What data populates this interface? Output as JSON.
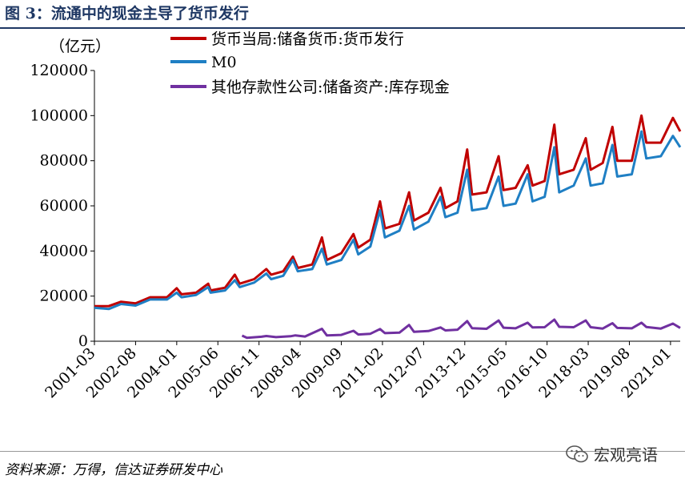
{
  "header": {
    "title": "图 3：流通中的现金主导了货币发行"
  },
  "footer": {
    "source": "资料来源：万得，信达证券研发中心",
    "watermark": "宏观亮语",
    "watermark_icon": "wechat-icon"
  },
  "chart_data": {
    "type": "line",
    "unit_label": "（亿元）",
    "ylim": [
      0,
      120000
    ],
    "yticks": [
      0,
      20000,
      40000,
      60000,
      80000,
      100000,
      120000
    ],
    "ytick_labels": [
      "0",
      "20000",
      "40000",
      "60000",
      "80000",
      "100000",
      "120000"
    ],
    "xlim": [
      "2001-03",
      "2021-05"
    ],
    "xtick_labels": [
      "2001-03",
      "2002-08",
      "2004-01",
      "2005-06",
      "2006-11",
      "2008-04",
      "2009-09",
      "2011-02",
      "2012-07",
      "2013-12",
      "2015-05",
      "2016-10",
      "2018-03",
      "2019-08",
      "2021-01"
    ],
    "legend_position": "top",
    "series": [
      {
        "name": "货币当局:储备货币:货币发行",
        "color": "#c00000",
        "start": "2001-03",
        "end": "2021-05",
        "points": [
          [
            "2001-03",
            15500
          ],
          [
            "2001-09",
            15600
          ],
          [
            "2002-02",
            17500
          ],
          [
            "2002-08",
            16800
          ],
          [
            "2003-02",
            19500
          ],
          [
            "2003-09",
            19500
          ],
          [
            "2004-01",
            23500
          ],
          [
            "2004-03",
            20800
          ],
          [
            "2004-09",
            21500
          ],
          [
            "2005-02",
            25500
          ],
          [
            "2005-03",
            22500
          ],
          [
            "2005-09",
            23700
          ],
          [
            "2006-01",
            29500
          ],
          [
            "2006-03",
            25500
          ],
          [
            "2006-09",
            27500
          ],
          [
            "2007-02",
            32000
          ],
          [
            "2007-04",
            29500
          ],
          [
            "2007-09",
            31000
          ],
          [
            "2008-01",
            37500
          ],
          [
            "2008-03",
            32500
          ],
          [
            "2008-09",
            34000
          ],
          [
            "2009-01",
            46000
          ],
          [
            "2009-03",
            36000
          ],
          [
            "2009-09",
            39000
          ],
          [
            "2010-02",
            47500
          ],
          [
            "2010-04",
            41500
          ],
          [
            "2010-09",
            45000
          ],
          [
            "2011-01",
            62000
          ],
          [
            "2011-03",
            50000
          ],
          [
            "2011-09",
            52000
          ],
          [
            "2012-01",
            66000
          ],
          [
            "2012-03",
            53500
          ],
          [
            "2012-09",
            57000
          ],
          [
            "2013-02",
            68000
          ],
          [
            "2013-04",
            59000
          ],
          [
            "2013-09",
            62000
          ],
          [
            "2014-01",
            85000
          ],
          [
            "2014-03",
            65000
          ],
          [
            "2014-09",
            66000
          ],
          [
            "2015-02",
            82000
          ],
          [
            "2015-04",
            67000
          ],
          [
            "2015-09",
            68000
          ],
          [
            "2016-02",
            78000
          ],
          [
            "2016-04",
            69000
          ],
          [
            "2016-09",
            71000
          ],
          [
            "2017-01",
            96000
          ],
          [
            "2017-03",
            74000
          ],
          [
            "2017-09",
            76000
          ],
          [
            "2018-02",
            90000
          ],
          [
            "2018-04",
            76000
          ],
          [
            "2018-09",
            79000
          ],
          [
            "2019-01",
            95000
          ],
          [
            "2019-03",
            80000
          ],
          [
            "2019-09",
            80000
          ],
          [
            "2020-01",
            100000
          ],
          [
            "2020-03",
            88000
          ],
          [
            "2020-09",
            88000
          ],
          [
            "2021-02",
            99000
          ],
          [
            "2021-05",
            93000
          ]
        ]
      },
      {
        "name": "M0",
        "color": "#1f7fc4",
        "start": "2001-03",
        "end": "2021-05",
        "points": [
          [
            "2001-03",
            14800
          ],
          [
            "2001-09",
            14300
          ],
          [
            "2002-02",
            16500
          ],
          [
            "2002-08",
            15800
          ],
          [
            "2003-02",
            18500
          ],
          [
            "2003-09",
            18500
          ],
          [
            "2004-01",
            21500
          ],
          [
            "2004-03",
            19500
          ],
          [
            "2004-09",
            20500
          ],
          [
            "2005-02",
            24000
          ],
          [
            "2005-03",
            21500
          ],
          [
            "2005-09",
            22500
          ],
          [
            "2006-01",
            27000
          ],
          [
            "2006-03",
            24000
          ],
          [
            "2006-09",
            26000
          ],
          [
            "2007-02",
            30000
          ],
          [
            "2007-04",
            27500
          ],
          [
            "2007-09",
            29000
          ],
          [
            "2008-01",
            36000
          ],
          [
            "2008-03",
            31000
          ],
          [
            "2008-09",
            32000
          ],
          [
            "2009-01",
            41000
          ],
          [
            "2009-03",
            34000
          ],
          [
            "2009-09",
            36000
          ],
          [
            "2010-02",
            45000
          ],
          [
            "2010-04",
            38500
          ],
          [
            "2010-09",
            42000
          ],
          [
            "2011-01",
            58000
          ],
          [
            "2011-03",
            46000
          ],
          [
            "2011-09",
            49000
          ],
          [
            "2012-01",
            60000
          ],
          [
            "2012-03",
            49500
          ],
          [
            "2012-09",
            53000
          ],
          [
            "2013-02",
            64000
          ],
          [
            "2013-04",
            55000
          ],
          [
            "2013-09",
            57000
          ],
          [
            "2014-01",
            76000
          ],
          [
            "2014-03",
            58000
          ],
          [
            "2014-09",
            59000
          ],
          [
            "2015-02",
            73000
          ],
          [
            "2015-04",
            60000
          ],
          [
            "2015-09",
            61000
          ],
          [
            "2016-02",
            74000
          ],
          [
            "2016-04",
            62000
          ],
          [
            "2016-09",
            64000
          ],
          [
            "2017-01",
            86000
          ],
          [
            "2017-03",
            66000
          ],
          [
            "2017-09",
            69000
          ],
          [
            "2018-02",
            81000
          ],
          [
            "2018-04",
            69000
          ],
          [
            "2018-09",
            70000
          ],
          [
            "2019-01",
            87000
          ],
          [
            "2019-03",
            73000
          ],
          [
            "2019-09",
            74000
          ],
          [
            "2020-01",
            93000
          ],
          [
            "2020-03",
            81000
          ],
          [
            "2020-09",
            82000
          ],
          [
            "2021-02",
            91000
          ],
          [
            "2021-05",
            86000
          ]
        ]
      },
      {
        "name": "其他存款性公司:储备资产:库存现金",
        "color": "#7030a0",
        "start": "2006-04",
        "end": "2021-05",
        "points": [
          [
            "2006-04",
            2500
          ],
          [
            "2006-06",
            1500
          ],
          [
            "2006-12",
            2000
          ],
          [
            "2007-02",
            2300
          ],
          [
            "2007-06",
            1800
          ],
          [
            "2007-12",
            2200
          ],
          [
            "2008-02",
            2600
          ],
          [
            "2008-06",
            2100
          ],
          [
            "2009-01",
            5500
          ],
          [
            "2009-03",
            2600
          ],
          [
            "2009-09",
            2800
          ],
          [
            "2010-02",
            4600
          ],
          [
            "2010-04",
            3000
          ],
          [
            "2010-09",
            3300
          ],
          [
            "2011-01",
            5400
          ],
          [
            "2011-03",
            3600
          ],
          [
            "2011-09",
            3800
          ],
          [
            "2012-01",
            7200
          ],
          [
            "2012-03",
            4200
          ],
          [
            "2012-09",
            4500
          ],
          [
            "2013-02",
            6100
          ],
          [
            "2013-04",
            4800
          ],
          [
            "2013-09",
            5100
          ],
          [
            "2014-01",
            8900
          ],
          [
            "2014-03",
            5800
          ],
          [
            "2014-09",
            5500
          ],
          [
            "2015-02",
            9200
          ],
          [
            "2015-04",
            6000
          ],
          [
            "2015-09",
            5700
          ],
          [
            "2016-02",
            8200
          ],
          [
            "2016-04",
            6100
          ],
          [
            "2016-09",
            6200
          ],
          [
            "2017-01",
            9600
          ],
          [
            "2017-03",
            6400
          ],
          [
            "2017-09",
            6200
          ],
          [
            "2018-02",
            9200
          ],
          [
            "2018-04",
            6200
          ],
          [
            "2018-09",
            5600
          ],
          [
            "2019-01",
            8000
          ],
          [
            "2019-03",
            5900
          ],
          [
            "2019-09",
            5700
          ],
          [
            "2020-01",
            8200
          ],
          [
            "2020-03",
            6300
          ],
          [
            "2020-09",
            5600
          ],
          [
            "2021-02",
            7800
          ],
          [
            "2021-05",
            5900
          ]
        ]
      }
    ]
  }
}
